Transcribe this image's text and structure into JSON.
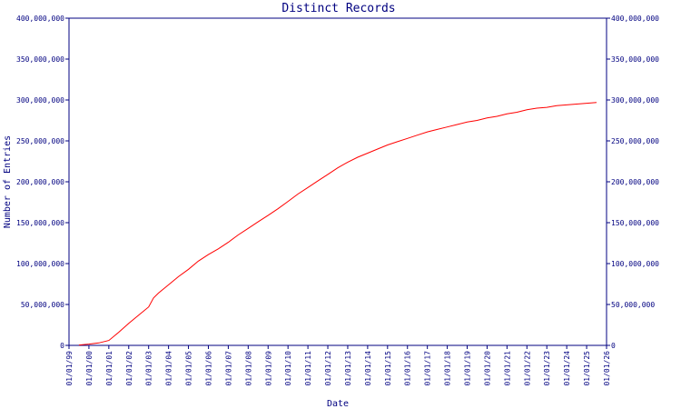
{
  "chart_data": {
    "type": "line",
    "title": "Distinct Records",
    "xlabel": "Date",
    "ylabel": "Number of Entries",
    "ylim": [
      0,
      400000000
    ],
    "xlim": [
      "1999-01-01",
      "2026-01-01"
    ],
    "grid": false,
    "y_ticks": [
      "0",
      "50,000,000",
      "100,000,000",
      "150,000,000",
      "200,000,000",
      "250,000,000",
      "300,000,000",
      "350,000,000",
      "400,000,000"
    ],
    "x_ticks": [
      "01/01/99",
      "01/01/00",
      "01/01/01",
      "01/01/02",
      "01/01/03",
      "01/01/04",
      "01/01/05",
      "01/01/06",
      "01/01/07",
      "01/01/08",
      "01/01/09",
      "01/01/10",
      "01/01/11",
      "01/01/12",
      "01/01/13",
      "01/01/14",
      "01/01/15",
      "01/01/16",
      "01/01/17",
      "01/01/18",
      "01/01/19",
      "01/01/20",
      "01/01/21",
      "01/01/22",
      "01/01/23",
      "01/01/24",
      "01/01/25",
      "01/01/26"
    ],
    "colors": {
      "axis": "#000080",
      "line": "#ff0000"
    },
    "series": [
      {
        "x": [
          "1999-07-01",
          "2000-01-01",
          "2000-07-01",
          "2001-01-01",
          "2001-07-01",
          "2002-01-01",
          "2002-07-01",
          "2003-01-01",
          "2003-04-01",
          "2003-07-01",
          "2004-01-01",
          "2004-07-01",
          "2005-01-01",
          "2005-07-01",
          "2006-01-01",
          "2006-07-01",
          "2007-01-01",
          "2007-07-01",
          "2008-01-01",
          "2008-07-01",
          "2009-01-01",
          "2009-07-01",
          "2010-01-01",
          "2010-07-01",
          "2011-01-01",
          "2011-07-01",
          "2012-01-01",
          "2012-07-01",
          "2013-01-01",
          "2013-07-01",
          "2014-01-01",
          "2014-07-01",
          "2015-01-01",
          "2015-07-01",
          "2016-01-01",
          "2016-07-01",
          "2017-01-01",
          "2017-07-01",
          "2018-01-01",
          "2018-07-01",
          "2019-01-01",
          "2019-07-01",
          "2020-01-01",
          "2020-07-01",
          "2021-01-01",
          "2021-07-01",
          "2022-01-01",
          "2022-07-01",
          "2023-01-01",
          "2023-07-01",
          "2024-01-01",
          "2024-07-01",
          "2025-01-01",
          "2025-07-01"
        ],
        "values": [
          500000,
          1500000,
          3000000,
          6000000,
          16000000,
          27000000,
          37000000,
          47000000,
          58000000,
          64000000,
          74000000,
          84000000,
          93000000,
          103000000,
          111000000,
          118000000,
          126000000,
          135000000,
          143000000,
          151000000,
          159000000,
          167000000,
          176000000,
          185000000,
          193000000,
          201000000,
          209000000,
          217000000,
          224000000,
          230000000,
          235000000,
          240000000,
          245000000,
          249000000,
          253000000,
          257000000,
          261000000,
          264000000,
          267000000,
          270000000,
          273000000,
          275000000,
          278000000,
          280000000,
          283000000,
          285000000,
          288000000,
          290000000,
          291000000,
          293000000,
          294000000,
          295000000,
          296000000,
          297000000
        ]
      }
    ]
  }
}
